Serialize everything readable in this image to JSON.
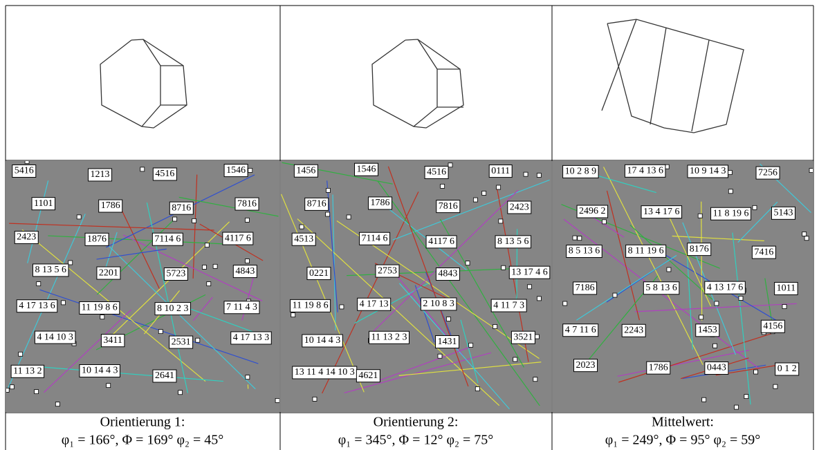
{
  "columns": [
    {
      "caption_line1": "Orientierung 1:",
      "caption_line2": "φ₁ = 166°, Φ = 169° φ₂ = 45°",
      "indices": [
        "5416",
        "1213",
        "4516",
        "1546",
        "1101",
        "1786",
        "8716",
        "7816",
        "2423",
        "1876",
        "7114 6",
        "4117 6",
        "8 13 5 6",
        "2201",
        "5723",
        "4843",
        "4 17 13 6",
        "11 19 8 6",
        "8 10 2 3",
        "7 11 4 3",
        "4 14 10 3",
        "3411",
        "2531",
        "4 17 13 3",
        "11 13 2",
        "10 14 4 3",
        "2641"
      ]
    },
    {
      "caption_line1": "Orientierung 2:",
      "caption_line2": "φ₁ = 345°, Φ = 12° φ₂ = 75°",
      "indices": [
        "1456",
        "1546",
        "4516",
        "0111",
        "8716",
        "1786",
        "7816",
        "2423",
        "4513",
        "7114 6",
        "4117 6",
        "8 13 5 6",
        "0221",
        "2753",
        "4843",
        "13 17 4 6",
        "11 19 8 6",
        "4 17 13",
        "2 10 8 3",
        "4 11 7 3",
        "10 14 4 3",
        "11 13 2 3",
        "1431",
        "3521",
        "13 11 4 14 10 3",
        "4621"
      ]
    },
    {
      "caption_line1": "Mittelwert:",
      "caption_line2": "φ₁ = 249°, Φ = 95° φ₂ = 59°",
      "indices": [
        "10 2 8 9",
        "17 4 13 6",
        "10 9 14 3",
        "7256",
        "2496 2",
        "13 4 17 6",
        "11 8 19 6",
        "5143",
        "8 5 13 6",
        "8 11 19 6",
        "8176",
        "7416",
        "7186",
        "5 8 13 6",
        "4 13 17 6",
        "1011",
        "4 7 11 6",
        "2243",
        "1453",
        "4156",
        "2023",
        "1786",
        "0443",
        "0 1 2"
      ]
    }
  ]
}
